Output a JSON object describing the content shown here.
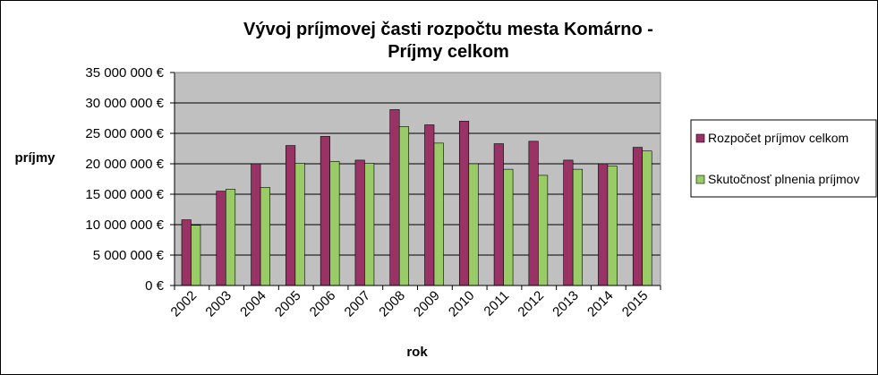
{
  "chart_data": {
    "type": "bar",
    "title_lines": [
      "Vývoj príjmovej časti rozpočtu mesta Komárno -",
      "Príjmy celkom"
    ],
    "xlabel": "rok",
    "ylabel": "príjmy",
    "categories": [
      "2002",
      "2003",
      "2004",
      "2005",
      "2006",
      "2007",
      "2008",
      "2009",
      "2010",
      "2011",
      "2012",
      "2013",
      "2014",
      "2015"
    ],
    "series": [
      {
        "name": "Rozpočet príjmov celkom",
        "color": "#993366",
        "values": [
          10800000,
          15500000,
          20000000,
          23000000,
          24500000,
          20600000,
          28900000,
          26400000,
          27000000,
          23300000,
          23700000,
          20600000,
          20000000,
          22700000
        ]
      },
      {
        "name": "Skutočnosť plnenia príjmov",
        "color": "#99CC66",
        "values": [
          9900000,
          15800000,
          16100000,
          20100000,
          20400000,
          20100000,
          26100000,
          23400000,
          20000000,
          19100000,
          18100000,
          19100000,
          19600000,
          22100000
        ]
      }
    ],
    "y_ticks": [
      "0 €",
      "5 000 000 €",
      "10 000 000 €",
      "15 000 000 €",
      "20 000 000 €",
      "25 000 000 €",
      "30 000 000 €",
      "35 000 000 €"
    ],
    "ylim": [
      0,
      35000000
    ],
    "grid": true,
    "plot_background": "#C0C0C0",
    "legend_position": "right"
  }
}
